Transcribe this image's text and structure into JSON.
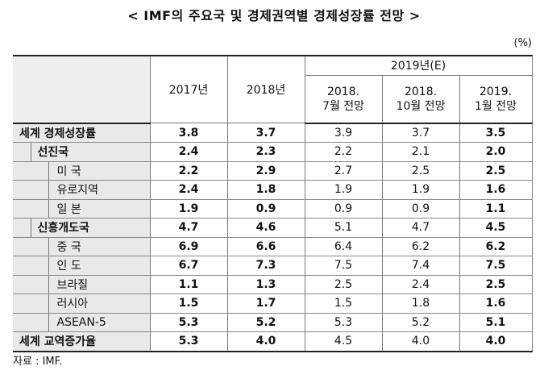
{
  "title": "< IMF의 주요국 및 경제권역별 경제성장률 전망 >",
  "unit": "(%)",
  "source": "자료 : IMF.",
  "table": {
    "col_2017": "2017년",
    "col_2018": "2018년",
    "col_2019_group": "2019년(E)",
    "sub_cols": [
      "2018.\n7월 전망",
      "2018.\n10월 전망",
      "2019.\n1월 전망"
    ],
    "rows": [
      {
        "label": "세계 경제성장률",
        "level": 0,
        "values": [
          "3.8",
          "3.7",
          "3.9",
          "3.7",
          "3.5"
        ]
      },
      {
        "label": "선진국",
        "level": 1,
        "values": [
          "2.4",
          "2.3",
          "2.2",
          "2.1",
          "2.0"
        ]
      },
      {
        "label": "미 국",
        "level": 2,
        "values": [
          "2.2",
          "2.9",
          "2.7",
          "2.5",
          "2.5"
        ]
      },
      {
        "label": "유로지역",
        "level": 2,
        "values": [
          "2.4",
          "1.8",
          "1.9",
          "1.9",
          "1.6"
        ]
      },
      {
        "label": "일 본",
        "level": 2,
        "values": [
          "1.9",
          "0.9",
          "0.9",
          "0.9",
          "1.1"
        ]
      },
      {
        "label": "신흥개도국",
        "level": 1,
        "values": [
          "4.7",
          "4.6",
          "5.1",
          "4.7",
          "4.5"
        ]
      },
      {
        "label": "중 국",
        "level": 2,
        "values": [
          "6.9",
          "6.6",
          "6.4",
          "6.2",
          "6.2"
        ]
      },
      {
        "label": "인 도",
        "level": 2,
        "values": [
          "6.7",
          "7.3",
          "7.5",
          "7.4",
          "7.5"
        ]
      },
      {
        "label": "브라질",
        "level": 2,
        "values": [
          "1.1",
          "1.3",
          "2.5",
          "2.4",
          "2.5"
        ]
      },
      {
        "label": "러시아",
        "level": 2,
        "values": [
          "1.5",
          "1.7",
          "1.5",
          "1.8",
          "1.6"
        ]
      },
      {
        "label": "ASEAN-5",
        "level": 2,
        "values": [
          "5.3",
          "5.2",
          "5.3",
          "5.2",
          "5.1"
        ]
      },
      {
        "label": "세계 교역증가율",
        "level": 0,
        "values": [
          "5.3",
          "4.0",
          "4.5",
          "4.0",
          "4.0"
        ]
      }
    ]
  }
}
